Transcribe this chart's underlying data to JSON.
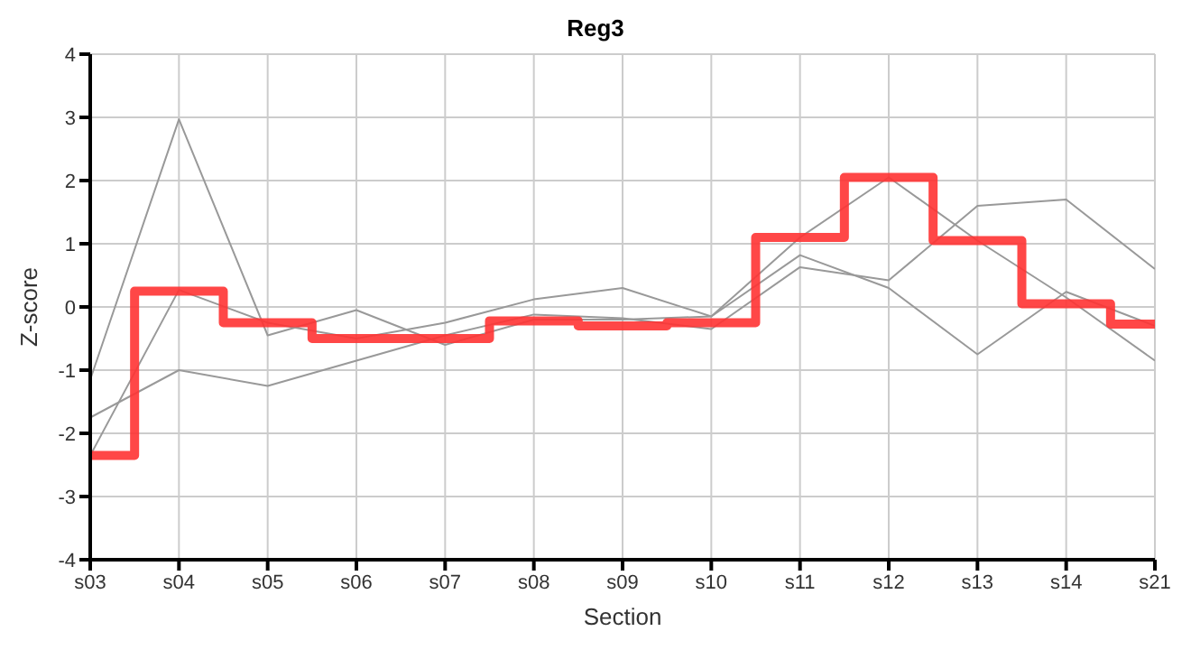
{
  "chart_data": {
    "type": "line",
    "title": "Reg3",
    "xlabel": "Section",
    "ylabel": "Z-score",
    "categories": [
      "s03",
      "s04",
      "s05",
      "s06",
      "s07",
      "s08",
      "s09",
      "s10",
      "s11",
      "s12",
      "s13",
      "s14",
      "s21"
    ],
    "series": [
      {
        "type": "line",
        "color": "#999999",
        "values": [
          -1.15,
          2.97,
          -0.45,
          -0.05,
          -0.6,
          -0.2,
          -0.2,
          -0.15,
          0.82,
          0.3,
          -0.75,
          0.24,
          -0.3
        ]
      },
      {
        "type": "line",
        "color": "#999999",
        "values": [
          -1.75,
          -1.0,
          -1.25,
          -0.85,
          -0.45,
          -0.12,
          -0.18,
          -0.35,
          0.63,
          0.42,
          1.6,
          1.7,
          0.6
        ]
      },
      {
        "type": "line",
        "color": "#999999",
        "values": [
          -2.35,
          0.27,
          -0.25,
          -0.5,
          -0.25,
          0.12,
          0.3,
          -0.15,
          1.1,
          2.05,
          1.05,
          0.15,
          -0.85
        ]
      },
      {
        "type": "step",
        "color": "#ff3333",
        "values": [
          -2.35,
          0.25,
          -0.25,
          -0.5,
          -0.5,
          -0.22,
          -0.3,
          -0.25,
          1.1,
          2.05,
          1.05,
          0.05,
          -0.27
        ]
      }
    ],
    "ylim": [
      -4,
      4
    ],
    "yticks": [
      -4,
      -3,
      -2,
      -1,
      0,
      1,
      2,
      3,
      4
    ],
    "grid": true,
    "legend": false,
    "marker": "none"
  }
}
